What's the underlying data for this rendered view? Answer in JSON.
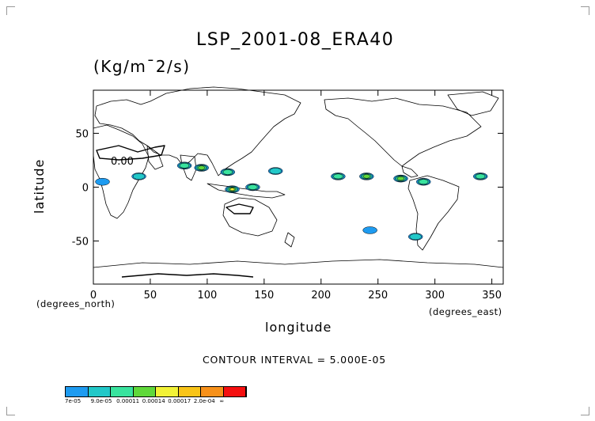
{
  "title": "LSP_2001-08_ERA40",
  "units": "(Kg/m¯2/s)",
  "contour_text": "CONTOUR INTERVAL = 5.000E-05",
  "colorbar": {
    "colors": [
      "#1e9bf0",
      "#22c8c8",
      "#39e39e",
      "#5fd83a",
      "#f2f237",
      "#f8c418",
      "#f7911a",
      "#f51010"
    ],
    "labels": [
      "7e-05",
      "9.0e-05",
      "0.00011",
      "0.00014",
      "0.00017",
      "2.0e-04",
      "∞"
    ]
  },
  "chart_data": {
    "type": "heatmap",
    "title": "LSP_2001-08_ERA40",
    "units": "(Kg/m¯2/s)",
    "xlabel": "longitude",
    "ylabel": "latitude",
    "x_unit_label": "(degrees_east)",
    "y_unit_label": "(degrees_north)",
    "xlim": [
      0,
      360
    ],
    "ylim": [
      -90,
      90
    ],
    "x_ticks": [
      0,
      50,
      100,
      150,
      200,
      250,
      300,
      350
    ],
    "y_ticks": [
      50,
      0,
      -50
    ],
    "contour_label": "0.00",
    "contour_interval": "5.000E-05",
    "regions": [
      {
        "lon": 8,
        "lat": 5,
        "level": 1
      },
      {
        "lon": 40,
        "lat": 10,
        "level": 2
      },
      {
        "lon": 80,
        "lat": 20,
        "level": 3
      },
      {
        "lon": 95,
        "lat": 18,
        "level": 4
      },
      {
        "lon": 118,
        "lat": 14,
        "level": 3
      },
      {
        "lon": 122,
        "lat": -2,
        "level": 5
      },
      {
        "lon": 140,
        "lat": 0,
        "level": 3
      },
      {
        "lon": 160,
        "lat": 15,
        "level": 2
      },
      {
        "lon": 215,
        "lat": 10,
        "level": 3
      },
      {
        "lon": 240,
        "lat": 10,
        "level": 4
      },
      {
        "lon": 270,
        "lat": 8,
        "level": 4
      },
      {
        "lon": 290,
        "lat": 5,
        "level": 3
      },
      {
        "lon": 340,
        "lat": 10,
        "level": 3
      },
      {
        "lon": 243,
        "lat": -40,
        "level": 1
      },
      {
        "lon": 283,
        "lat": -46,
        "level": 2
      }
    ],
    "grid": false
  }
}
